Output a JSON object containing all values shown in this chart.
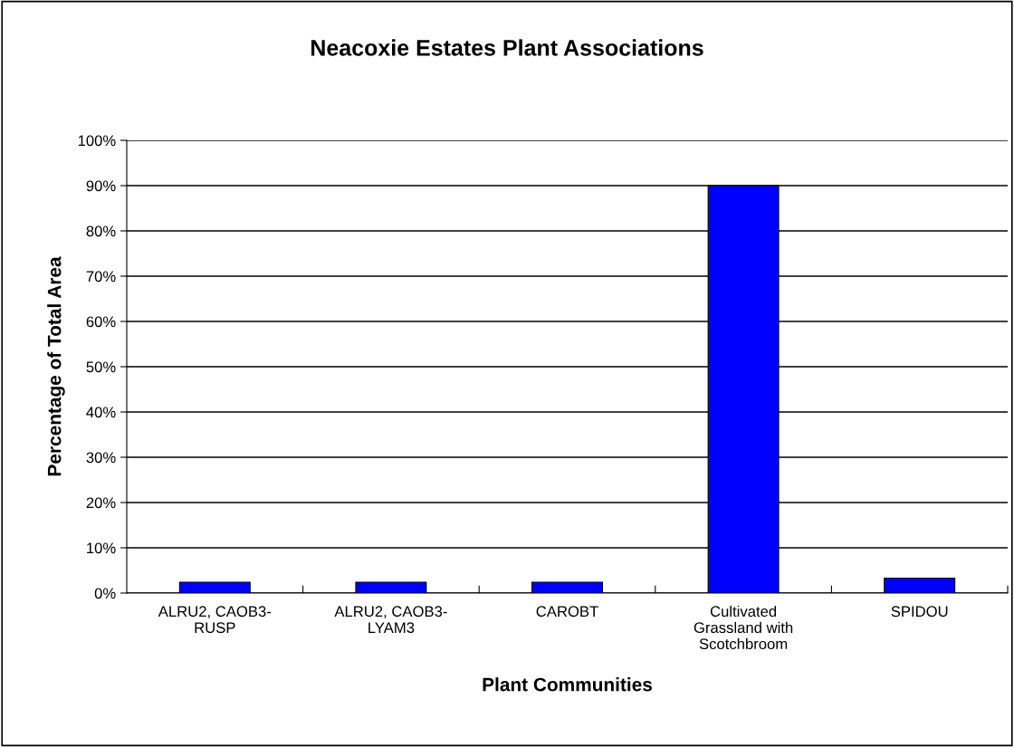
{
  "chart_data": {
    "type": "bar",
    "title": "Neacoxie Estates Plant Associations",
    "xlabel": "Plant Communities",
    "ylabel": "Percentage of Total Area",
    "categories": [
      "ALRU2, CAOB3-\nRUSP",
      "ALRU2, CAOB3-\nLYAM3",
      "CAROBT",
      "Cultivated\nGrassland with\nScotchbroom",
      "SPIDOU"
    ],
    "values": [
      2.4,
      2.4,
      2.4,
      90,
      3.3
    ],
    "color": "#0000ff",
    "ylim": [
      0,
      100
    ],
    "yticks": [
      {
        "value": 0,
        "label": "0%"
      },
      {
        "value": 10,
        "label": "10%"
      },
      {
        "value": 20,
        "label": "20%"
      },
      {
        "value": 30,
        "label": "30%"
      },
      {
        "value": 40,
        "label": "40%"
      },
      {
        "value": 50,
        "label": "50%"
      },
      {
        "value": 60,
        "label": "60%"
      },
      {
        "value": 70,
        "label": "70%"
      },
      {
        "value": 80,
        "label": "80%"
      },
      {
        "value": 90,
        "label": "90%"
      },
      {
        "value": 100,
        "label": "100%"
      }
    ],
    "grid": "y"
  }
}
